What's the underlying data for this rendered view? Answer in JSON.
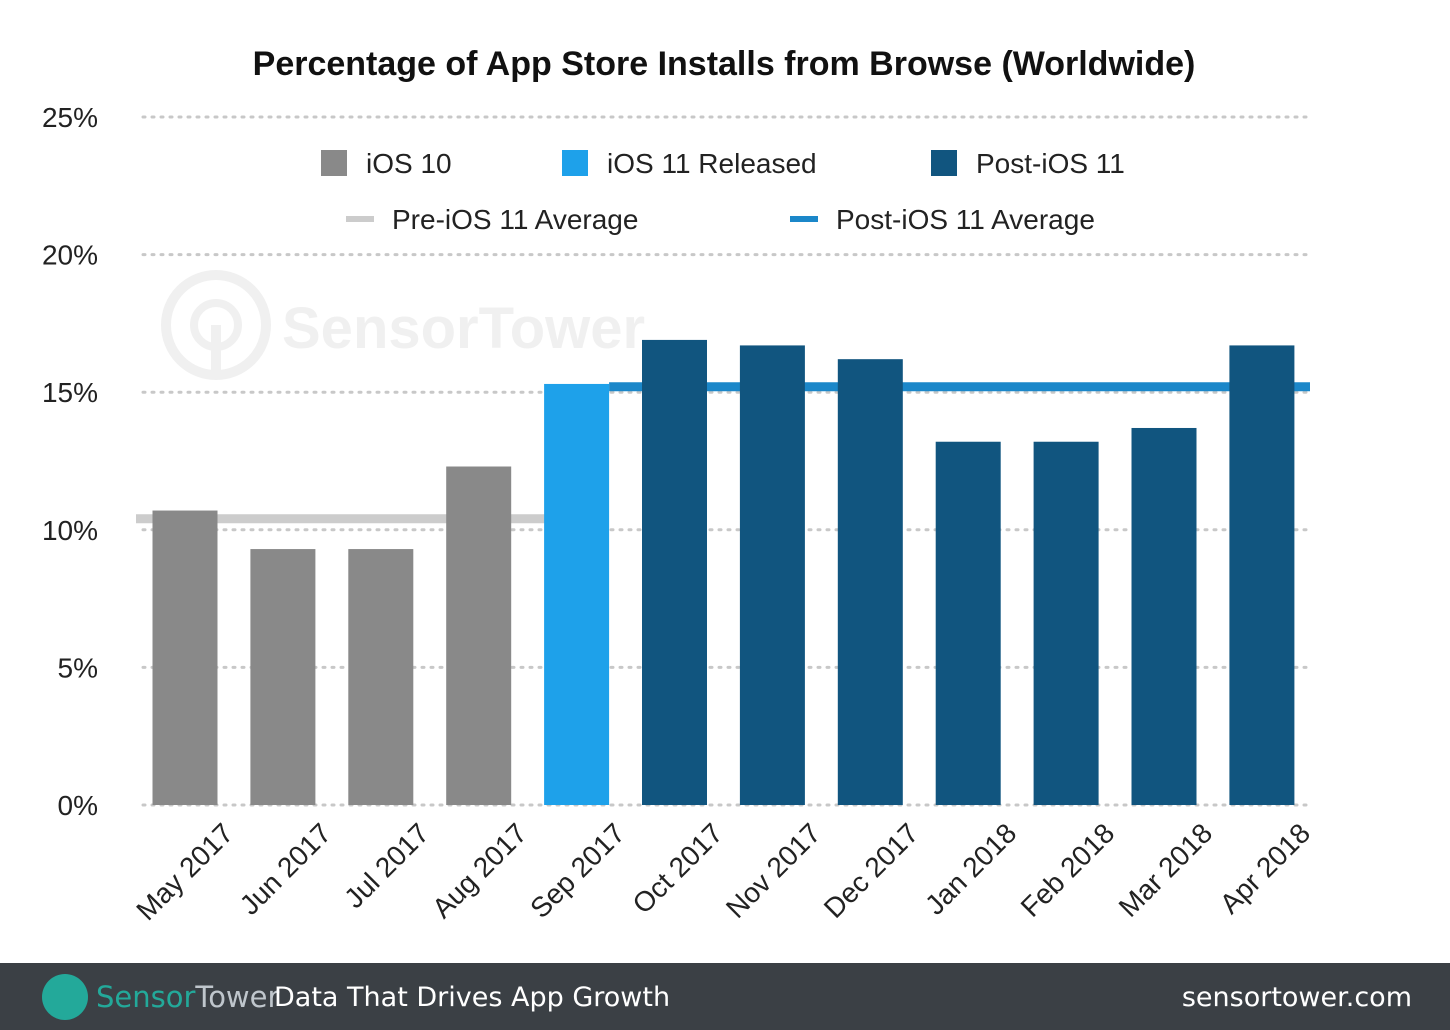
{
  "chart_data": {
    "type": "bar",
    "title": "Percentage of App Store Installs from Browse (Worldwide)",
    "categories": [
      "May 2017",
      "Jun 2017",
      "Jul 2017",
      "Aug 2017",
      "Sep 2017",
      "Oct 2017",
      "Nov 2017",
      "Dec 2017",
      "Jan 2018",
      "Feb 2018",
      "Mar 2018",
      "Apr 2018"
    ],
    "values": [
      10.7,
      9.3,
      9.3,
      12.3,
      15.3,
      16.9,
      16.7,
      16.2,
      13.2,
      13.2,
      13.7,
      16.7
    ],
    "groups": [
      "iOS 10",
      "iOS 10",
      "iOS 10",
      "iOS 10",
      "iOS 11 Released",
      "Post-iOS 11",
      "Post-iOS 11",
      "Post-iOS 11",
      "Post-iOS 11",
      "Post-iOS 11",
      "Post-iOS 11",
      "Post-iOS 11"
    ],
    "legend": [
      {
        "name": "iOS 10",
        "color": "#898989",
        "kind": "bar"
      },
      {
        "name": "iOS 11 Released",
        "color": "#1ea1ea",
        "kind": "bar"
      },
      {
        "name": "Post-iOS 11",
        "color": "#11557f",
        "kind": "bar"
      },
      {
        "name": "Pre-iOS 11 Average",
        "color": "#cccccc",
        "kind": "line",
        "value": 10.4
      },
      {
        "name": "Post-iOS 11 Average",
        "color": "#1b87c9",
        "kind": "line",
        "value": 15.2
      }
    ],
    "ylim": [
      0,
      25
    ],
    "yticks": [
      "0%",
      "5%",
      "10%",
      "15%",
      "20%",
      "25%"
    ],
    "grid": true,
    "legend_placement": "top",
    "watermark": "SensorTower"
  },
  "footer": {
    "brand_a": "Sensor",
    "brand_b": "Tower",
    "tagline": "Data That Drives App Growth",
    "site": "sensortower.com"
  }
}
